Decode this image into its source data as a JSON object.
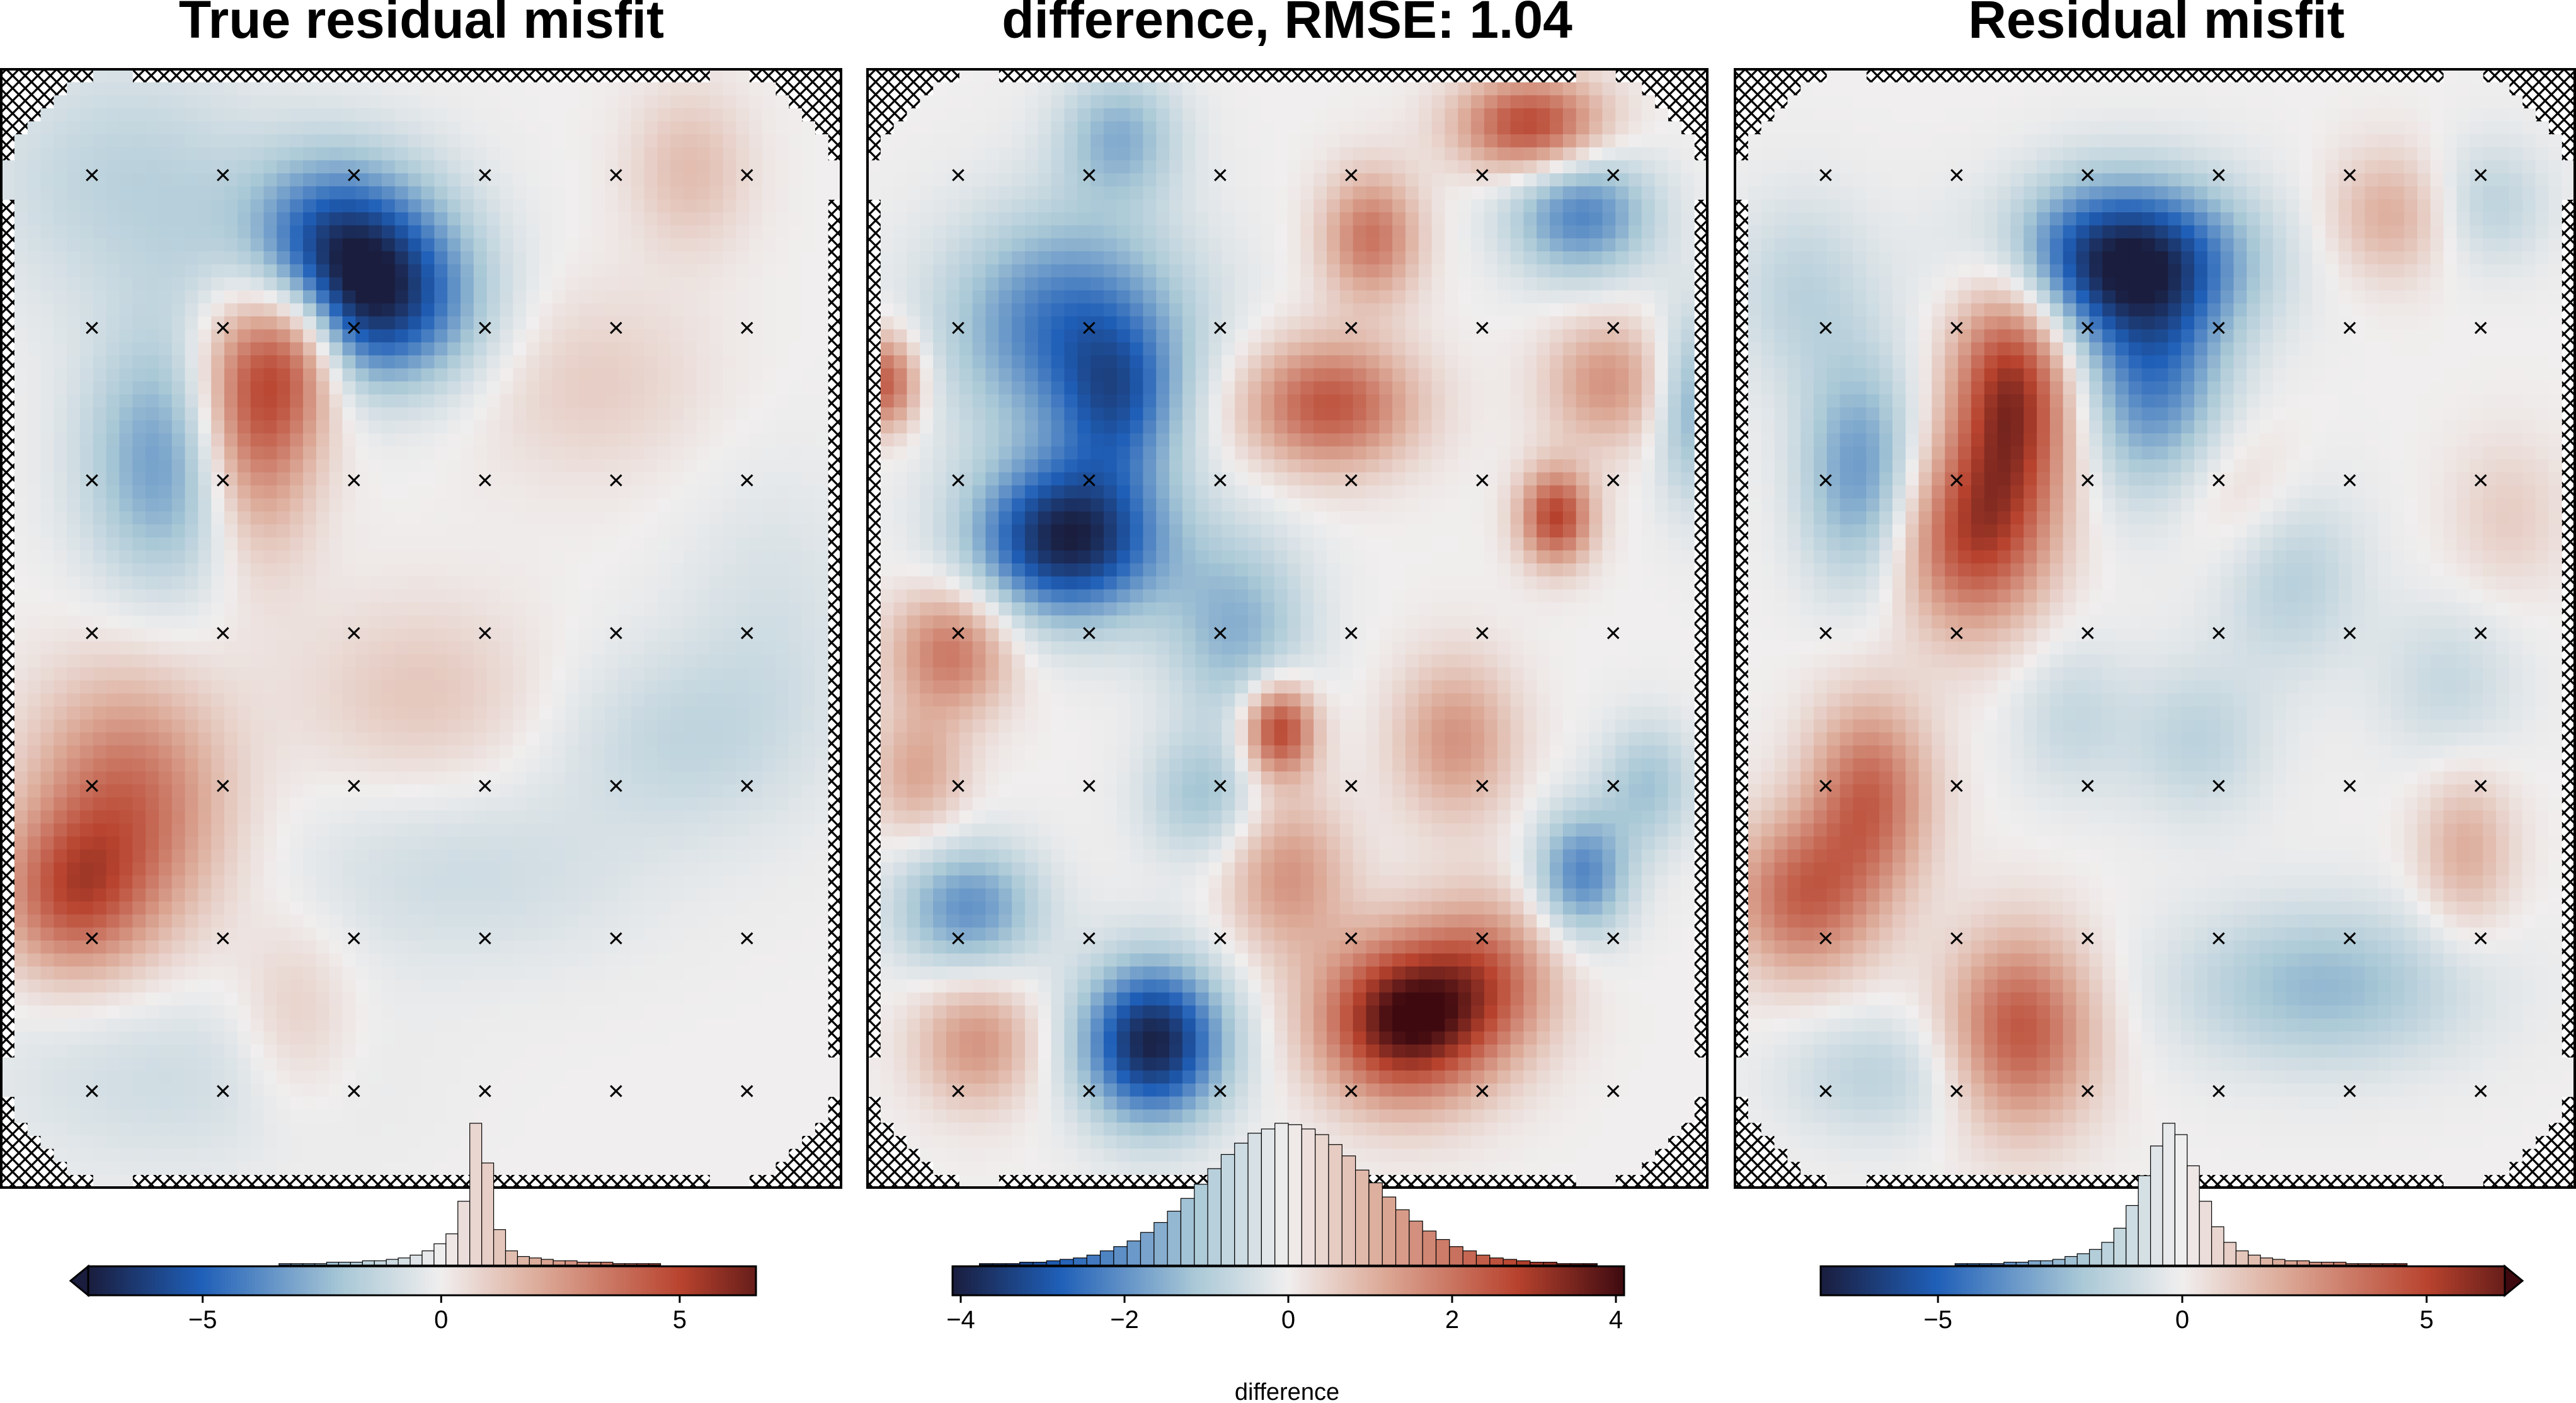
{
  "colors": {
    "map_low": "#1a1d3d",
    "map_mid_low": "#1f5fb8",
    "map_light_low": "#a9c8d6",
    "map_neutral": "#f0eeee",
    "map_light_high": "#dcaa98",
    "map_mid_high": "#b8432e",
    "map_high": "#3e0a10",
    "marker": "#000000",
    "hist_edge": "#000000",
    "frame": "#000000"
  },
  "chart_data": [
    {
      "type": "heatmap",
      "title": "True residual misfit",
      "colorbar": {
        "vmin": -7.4,
        "vmax": 6.6,
        "ticks": [
          -5,
          0,
          5
        ],
        "tick_labels": [
          "−5",
          "0",
          "5"
        ],
        "label": "",
        "extend": "min",
        "histogram": [
          0.0,
          0.0,
          0.0,
          0.0,
          0.0,
          0.0,
          0.0,
          0.0,
          0.0,
          0.0,
          0.0,
          0.0,
          0.0,
          0.0,
          0.0,
          0.0,
          0.01,
          0.01,
          0.01,
          0.01,
          0.02,
          0.02,
          0.02,
          0.03,
          0.03,
          0.04,
          0.05,
          0.07,
          0.1,
          0.15,
          0.22,
          0.45,
          1.0,
          0.72,
          0.25,
          0.1,
          0.06,
          0.05,
          0.04,
          0.03,
          0.03,
          0.02,
          0.02,
          0.02,
          0.01,
          0.01,
          0.01,
          0.01,
          0.0,
          0.0,
          0.0,
          0.0,
          0.0,
          0.0,
          0.0,
          0.0
        ]
      },
      "markers": {
        "columns": 6,
        "rows": 7,
        "symbol": "×"
      },
      "features": [
        {
          "x": 0.4,
          "y": 0.17,
          "value": -7.0,
          "sx": 0.09,
          "sy": 0.06
        },
        {
          "x": 0.47,
          "y": 0.22,
          "value": -3.0,
          "sx": 0.08,
          "sy": 0.05
        },
        {
          "x": 0.3,
          "y": 0.29,
          "value": 5.5,
          "sx": 0.05,
          "sy": 0.09
        },
        {
          "x": 0.36,
          "y": 0.24,
          "value": 3.5,
          "sx": 0.04,
          "sy": 0.05
        },
        {
          "x": 0.2,
          "y": 0.35,
          "value": -3.5,
          "sx": 0.07,
          "sy": 0.08
        },
        {
          "x": 0.15,
          "y": 0.66,
          "value": 4.0,
          "sx": 0.08,
          "sy": 0.08
        },
        {
          "x": 0.08,
          "y": 0.74,
          "value": 3.5,
          "sx": 0.06,
          "sy": 0.05
        },
        {
          "x": 0.15,
          "y": 0.1,
          "value": -1.5,
          "sx": 0.12,
          "sy": 0.08
        },
        {
          "x": 0.82,
          "y": 0.09,
          "value": 1.5,
          "sx": 0.05,
          "sy": 0.05
        },
        {
          "x": 0.7,
          "y": 0.28,
          "value": 1.0,
          "sx": 0.1,
          "sy": 0.06
        },
        {
          "x": 0.5,
          "y": 0.56,
          "value": 1.2,
          "sx": 0.1,
          "sy": 0.06
        },
        {
          "x": 0.8,
          "y": 0.6,
          "value": -1.2,
          "sx": 0.1,
          "sy": 0.06
        },
        {
          "x": 0.55,
          "y": 0.72,
          "value": -1.0,
          "sx": 0.15,
          "sy": 0.06
        },
        {
          "x": 0.35,
          "y": 0.85,
          "value": 1.2,
          "sx": 0.05,
          "sy": 0.06
        },
        {
          "x": 0.2,
          "y": 0.9,
          "value": -1.0,
          "sx": 0.15,
          "sy": 0.06
        },
        {
          "x": 0.92,
          "y": 0.5,
          "value": -0.8,
          "sx": 0.08,
          "sy": 0.1
        }
      ]
    },
    {
      "type": "heatmap",
      "title": "difference, RMSE: 1.04",
      "colorbar": {
        "vmin": -4.1,
        "vmax": 4.1,
        "ticks": [
          -4,
          -2,
          0,
          2,
          4
        ],
        "tick_labels": [
          "−4",
          "−2",
          "0",
          "2",
          "4"
        ],
        "label": "difference",
        "extend": "none",
        "histogram": [
          0.0,
          0.0,
          0.01,
          0.01,
          0.01,
          0.02,
          0.02,
          0.03,
          0.04,
          0.05,
          0.07,
          0.1,
          0.13,
          0.17,
          0.23,
          0.3,
          0.38,
          0.47,
          0.57,
          0.68,
          0.78,
          0.86,
          0.93,
          0.96,
          1.0,
          0.99,
          0.96,
          0.92,
          0.85,
          0.77,
          0.67,
          0.58,
          0.48,
          0.39,
          0.31,
          0.24,
          0.18,
          0.13,
          0.1,
          0.07,
          0.05,
          0.04,
          0.03,
          0.02,
          0.02,
          0.01,
          0.01,
          0.01,
          0.0,
          0.0
        ]
      },
      "markers": {
        "columns": 6,
        "rows": 7,
        "symbol": "×"
      },
      "features": [
        {
          "x": 0.24,
          "y": 0.42,
          "value": -4.0,
          "sx": 0.08,
          "sy": 0.05
        },
        {
          "x": 0.34,
          "y": 0.87,
          "value": -4.0,
          "sx": 0.06,
          "sy": 0.05
        },
        {
          "x": 0.64,
          "y": 0.85,
          "value": 4.0,
          "sx": 0.07,
          "sy": 0.05
        },
        {
          "x": 0.74,
          "y": 0.81,
          "value": 1.8,
          "sx": 0.06,
          "sy": 0.05
        },
        {
          "x": 0.55,
          "y": 0.3,
          "value": 2.5,
          "sx": 0.07,
          "sy": 0.04
        },
        {
          "x": 0.6,
          "y": 0.15,
          "value": 2.0,
          "sx": 0.04,
          "sy": 0.04
        },
        {
          "x": 0.79,
          "y": 0.05,
          "value": 2.8,
          "sx": 0.06,
          "sy": 0.03
        },
        {
          "x": 0.82,
          "y": 0.4,
          "value": 2.8,
          "sx": 0.03,
          "sy": 0.03
        },
        {
          "x": 0.49,
          "y": 0.59,
          "value": 3.0,
          "sx": 0.03,
          "sy": 0.03
        },
        {
          "x": 0.02,
          "y": 0.28,
          "value": 2.5,
          "sx": 0.03,
          "sy": 0.03
        },
        {
          "x": 0.24,
          "y": 0.23,
          "value": -2.5,
          "sx": 0.1,
          "sy": 0.07
        },
        {
          "x": 0.3,
          "y": 0.3,
          "value": -1.8,
          "sx": 0.05,
          "sy": 0.05
        },
        {
          "x": 0.88,
          "y": 0.28,
          "value": 1.5,
          "sx": 0.05,
          "sy": 0.04
        },
        {
          "x": 0.85,
          "y": 0.13,
          "value": -2.2,
          "sx": 0.06,
          "sy": 0.04
        },
        {
          "x": 0.1,
          "y": 0.52,
          "value": 2.0,
          "sx": 0.05,
          "sy": 0.04
        },
        {
          "x": 0.12,
          "y": 0.75,
          "value": -2.0,
          "sx": 0.06,
          "sy": 0.04
        },
        {
          "x": 0.85,
          "y": 0.72,
          "value": -2.2,
          "sx": 0.04,
          "sy": 0.04
        },
        {
          "x": 0.13,
          "y": 0.87,
          "value": 1.5,
          "sx": 0.05,
          "sy": 0.04
        },
        {
          "x": 0.44,
          "y": 0.5,
          "value": -1.5,
          "sx": 0.06,
          "sy": 0.06
        },
        {
          "x": 0.5,
          "y": 0.72,
          "value": 1.5,
          "sx": 0.05,
          "sy": 0.05
        },
        {
          "x": 0.7,
          "y": 0.6,
          "value": 1.5,
          "sx": 0.05,
          "sy": 0.05
        },
        {
          "x": 0.93,
          "y": 0.64,
          "value": -1.2,
          "sx": 0.04,
          "sy": 0.04
        },
        {
          "x": 0.3,
          "y": 0.06,
          "value": -1.5,
          "sx": 0.05,
          "sy": 0.04
        },
        {
          "x": 0.4,
          "y": 0.65,
          "value": -1.2,
          "sx": 0.05,
          "sy": 0.04
        },
        {
          "x": 0.06,
          "y": 0.63,
          "value": 1.2,
          "sx": 0.04,
          "sy": 0.04
        },
        {
          "x": 0.98,
          "y": 0.3,
          "value": -1.5,
          "sx": 0.03,
          "sy": 0.06
        }
      ]
    },
    {
      "type": "heatmap",
      "title": "Residual misfit",
      "colorbar": {
        "vmin": -7.4,
        "vmax": 6.6,
        "ticks": [
          -5,
          0,
          5
        ],
        "tick_labels": [
          "−5",
          "0",
          "5"
        ],
        "label": "",
        "extend": "max",
        "histogram": [
          0.0,
          0.0,
          0.0,
          0.0,
          0.0,
          0.0,
          0.0,
          0.0,
          0.0,
          0.0,
          0.0,
          0.01,
          0.01,
          0.01,
          0.01,
          0.02,
          0.02,
          0.03,
          0.03,
          0.04,
          0.06,
          0.08,
          0.11,
          0.16,
          0.26,
          0.42,
          0.63,
          0.84,
          1.0,
          0.92,
          0.7,
          0.45,
          0.27,
          0.16,
          0.1,
          0.07,
          0.05,
          0.04,
          0.03,
          0.03,
          0.02,
          0.02,
          0.02,
          0.01,
          0.01,
          0.01,
          0.01,
          0.01,
          0.0,
          0.0,
          0.0,
          0.0,
          0.0,
          0.0,
          0.0,
          0.0
        ]
      },
      "markers": {
        "columns": 6,
        "rows": 7,
        "symbol": "×"
      },
      "features": [
        {
          "x": 0.46,
          "y": 0.17,
          "value": -7.0,
          "sx": 0.1,
          "sy": 0.05
        },
        {
          "x": 0.5,
          "y": 0.28,
          "value": -4.0,
          "sx": 0.06,
          "sy": 0.07
        },
        {
          "x": 0.33,
          "y": 0.29,
          "value": 6.0,
          "sx": 0.05,
          "sy": 0.08
        },
        {
          "x": 0.28,
          "y": 0.42,
          "value": 4.5,
          "sx": 0.06,
          "sy": 0.06
        },
        {
          "x": 0.15,
          "y": 0.36,
          "value": -3.5,
          "sx": 0.05,
          "sy": 0.07
        },
        {
          "x": 0.16,
          "y": 0.65,
          "value": 4.0,
          "sx": 0.05,
          "sy": 0.06
        },
        {
          "x": 0.08,
          "y": 0.74,
          "value": 4.0,
          "sx": 0.06,
          "sy": 0.05
        },
        {
          "x": 0.34,
          "y": 0.86,
          "value": 4.5,
          "sx": 0.06,
          "sy": 0.06
        },
        {
          "x": 0.7,
          "y": 0.82,
          "value": -2.5,
          "sx": 0.12,
          "sy": 0.05
        },
        {
          "x": 0.78,
          "y": 0.13,
          "value": 2.0,
          "sx": 0.05,
          "sy": 0.04
        },
        {
          "x": 0.9,
          "y": 0.12,
          "value": -1.5,
          "sx": 0.05,
          "sy": 0.04
        },
        {
          "x": 0.87,
          "y": 0.7,
          "value": 2.0,
          "sx": 0.04,
          "sy": 0.05
        },
        {
          "x": 0.66,
          "y": 0.45,
          "value": -1.8,
          "sx": 0.06,
          "sy": 0.06
        },
        {
          "x": 0.55,
          "y": 0.6,
          "value": -1.5,
          "sx": 0.06,
          "sy": 0.05
        },
        {
          "x": 0.17,
          "y": 0.9,
          "value": -1.5,
          "sx": 0.08,
          "sy": 0.04
        },
        {
          "x": 0.6,
          "y": 0.38,
          "value": 1.2,
          "sx": 0.06,
          "sy": 0.05
        },
        {
          "x": 0.08,
          "y": 0.2,
          "value": -1.5,
          "sx": 0.06,
          "sy": 0.06
        },
        {
          "x": 0.85,
          "y": 0.55,
          "value": -1.2,
          "sx": 0.06,
          "sy": 0.05
        },
        {
          "x": 0.4,
          "y": 0.58,
          "value": -1.2,
          "sx": 0.05,
          "sy": 0.05
        },
        {
          "x": 0.92,
          "y": 0.4,
          "value": 1.0,
          "sx": 0.05,
          "sy": 0.05
        }
      ]
    }
  ]
}
